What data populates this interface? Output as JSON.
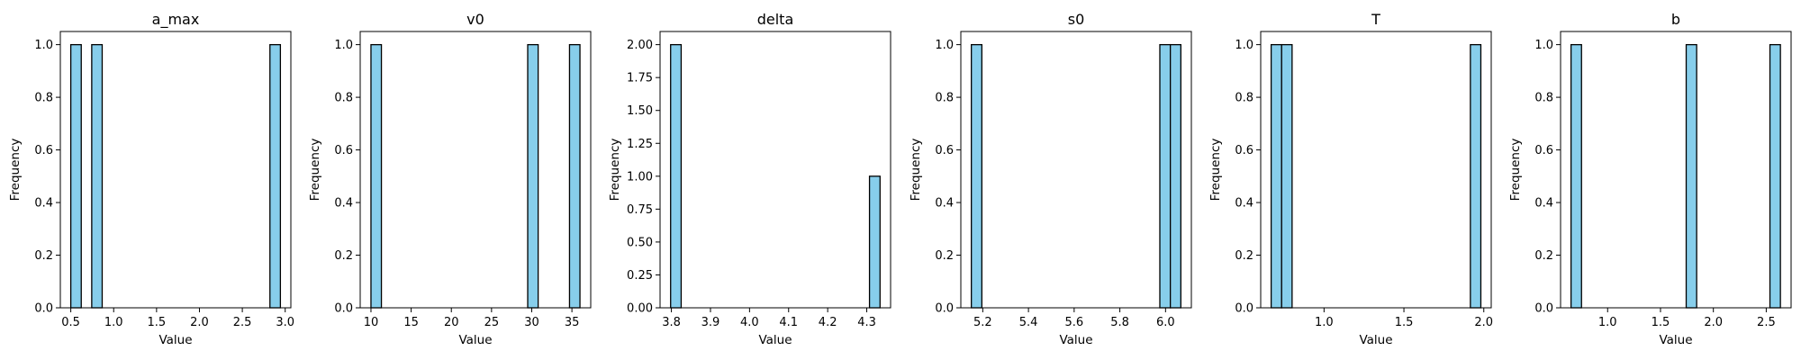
{
  "chart_data": [
    {
      "type": "bar",
      "title": "a_max",
      "xlabel": "Value",
      "ylabel": "Frequency",
      "xlim": [
        0.378,
        3.066
      ],
      "ylim": [
        0,
        1.05
      ],
      "xticks": [
        0.5,
        1.0,
        1.5,
        2.0,
        2.5,
        3.0
      ],
      "xtick_labels": [
        "0.5",
        "1.0",
        "1.5",
        "2.0",
        "2.5",
        "3.0"
      ],
      "yticks": [
        0.0,
        0.2,
        0.4,
        0.6,
        0.8,
        1.0
      ],
      "ytick_labels": [
        "0.0",
        "0.2",
        "0.4",
        "0.6",
        "0.8",
        "1.0"
      ],
      "bins": [
        {
          "x0": 0.5,
          "x1": 0.622,
          "count": 1
        },
        {
          "x0": 0.744,
          "x1": 0.866,
          "count": 1
        },
        {
          "x0": 2.822,
          "x1": 2.944,
          "count": 1
        }
      ]
    },
    {
      "type": "bar",
      "title": "v0",
      "xlabel": "Value",
      "ylabel": "Frequency",
      "xlim": [
        8.66,
        37.34
      ],
      "ylim": [
        0,
        1.05
      ],
      "xticks": [
        10,
        15,
        20,
        25,
        30,
        35
      ],
      "xtick_labels": [
        "10",
        "15",
        "20",
        "25",
        "30",
        "35"
      ],
      "yticks": [
        0.0,
        0.2,
        0.4,
        0.6,
        0.8,
        1.0
      ],
      "ytick_labels": [
        "0.0",
        "0.2",
        "0.4",
        "0.6",
        "0.8",
        "1.0"
      ],
      "bins": [
        {
          "x0": 10.0,
          "x1": 11.3,
          "count": 1
        },
        {
          "x0": 29.5,
          "x1": 30.8,
          "count": 1
        },
        {
          "x0": 34.7,
          "x1": 36.0,
          "count": 1
        }
      ]
    },
    {
      "type": "bar",
      "title": "delta",
      "xlabel": "Value",
      "ylabel": "Frequency",
      "xlim": [
        3.771,
        4.361
      ],
      "ylim": [
        0,
        2.1
      ],
      "xticks": [
        3.8,
        3.9,
        4.0,
        4.1,
        4.2,
        4.3
      ],
      "xtick_labels": [
        "3.8",
        "3.9",
        "4.0",
        "4.1",
        "4.2",
        "4.3"
      ],
      "yticks": [
        0.0,
        0.25,
        0.5,
        0.75,
        1.0,
        1.25,
        1.5,
        1.75,
        2.0
      ],
      "ytick_labels": [
        "0.00",
        "0.25",
        "0.50",
        "0.75",
        "1.00",
        "1.25",
        "1.50",
        "1.75",
        "2.00"
      ],
      "bins": [
        {
          "x0": 3.798,
          "x1": 3.825,
          "count": 2
        },
        {
          "x0": 4.307,
          "x1": 4.334,
          "count": 1
        }
      ]
    },
    {
      "type": "bar",
      "title": "s0",
      "xlabel": "Value",
      "ylabel": "Frequency",
      "xlim": [
        5.104,
        6.113
      ],
      "ylim": [
        0,
        1.05
      ],
      "xticks": [
        5.2,
        5.4,
        5.6,
        5.8,
        6.0
      ],
      "xtick_labels": [
        "5.2",
        "5.4",
        "5.6",
        "5.8",
        "6.0"
      ],
      "yticks": [
        0.0,
        0.2,
        0.4,
        0.6,
        0.8,
        1.0
      ],
      "ytick_labels": [
        "0.0",
        "0.2",
        "0.4",
        "0.6",
        "0.8",
        "1.0"
      ],
      "bins": [
        {
          "x0": 5.15,
          "x1": 5.196,
          "count": 1
        },
        {
          "x0": 5.975,
          "x1": 6.021,
          "count": 1
        },
        {
          "x0": 6.021,
          "x1": 6.067,
          "count": 1
        }
      ]
    },
    {
      "type": "bar",
      "title": "T",
      "xlabel": "Value",
      "ylabel": "Frequency",
      "xlim": [
        0.6035,
        2.0465
      ],
      "ylim": [
        0,
        1.05
      ],
      "xticks": [
        1.0,
        1.5,
        2.0
      ],
      "xtick_labels": [
        "1.0",
        "1.5",
        "2.0"
      ],
      "yticks": [
        0.0,
        0.2,
        0.4,
        0.6,
        0.8,
        1.0
      ],
      "ytick_labels": [
        "0.0",
        "0.2",
        "0.4",
        "0.6",
        "0.8",
        "1.0"
      ],
      "bins": [
        {
          "x0": 0.669,
          "x1": 0.7345,
          "count": 1
        },
        {
          "x0": 0.7345,
          "x1": 0.8,
          "count": 1
        },
        {
          "x0": 1.916,
          "x1": 1.9815,
          "count": 1
        }
      ]
    },
    {
      "type": "bar",
      "title": "b",
      "xlabel": "Value",
      "ylabel": "Frequency",
      "xlim": [
        0.555,
        2.735
      ],
      "ylim": [
        0,
        1.05
      ],
      "xticks": [
        1.0,
        1.5,
        2.0,
        2.5
      ],
      "xtick_labels": [
        "1.0",
        "1.5",
        "2.0",
        "2.5"
      ],
      "yticks": [
        0.0,
        0.2,
        0.4,
        0.6,
        0.8,
        1.0
      ],
      "ytick_labels": [
        "0.0",
        "0.2",
        "0.4",
        "0.6",
        "0.8",
        "1.0"
      ],
      "bins": [
        {
          "x0": 0.654,
          "x1": 0.753,
          "count": 1
        },
        {
          "x0": 1.743,
          "x1": 1.842,
          "count": 1
        },
        {
          "x0": 2.535,
          "x1": 2.634,
          "count": 1
        }
      ]
    }
  ],
  "colors": {
    "bar_fill": "#87ceeb",
    "bar_edge": "#000000",
    "axis": "#000000",
    "background": "#ffffff"
  }
}
